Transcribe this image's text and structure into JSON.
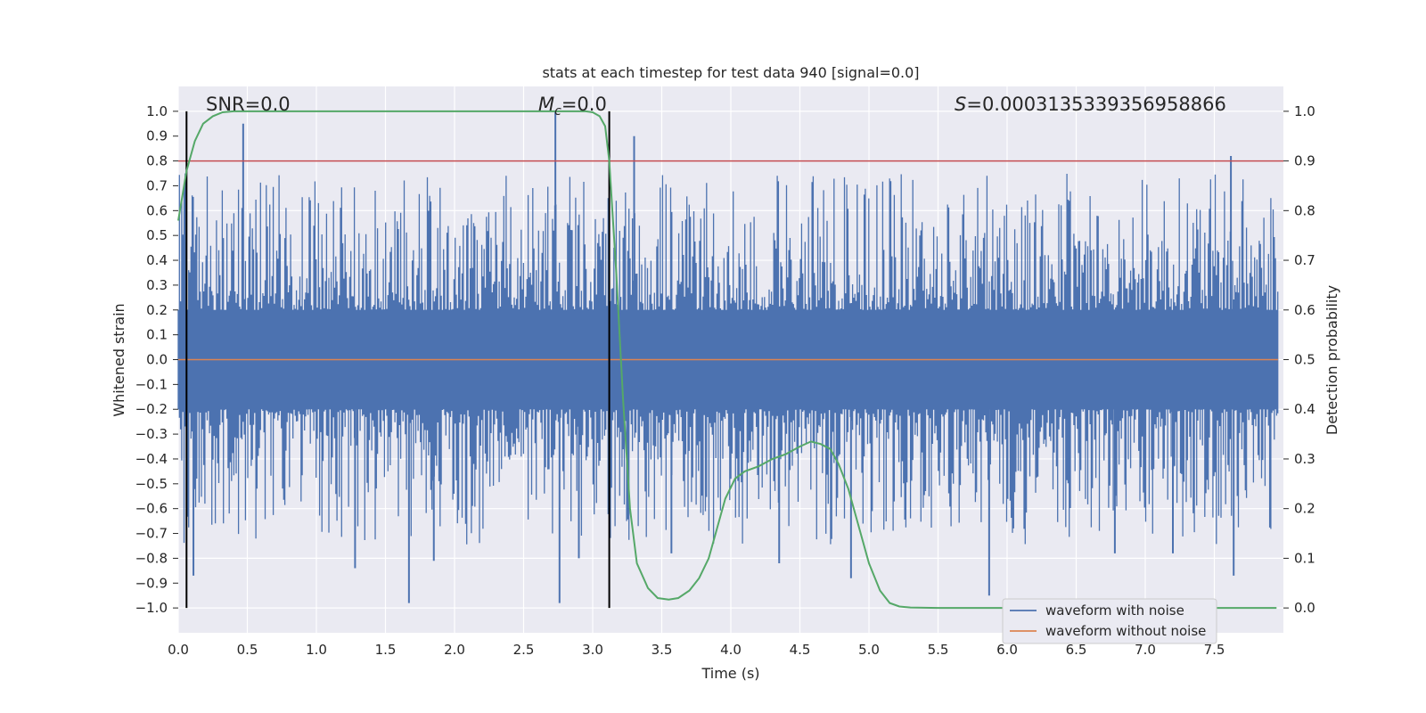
{
  "chart_data": {
    "type": "line",
    "title": "stats at each timestep for test data 940 [signal=0.0]",
    "xlabel": "Time (s)",
    "ylabel_left": "Whitened strain",
    "ylabel_right": "Detection probability",
    "xlim": [
      0.0,
      8.0
    ],
    "ylim_left": [
      -1.1,
      1.1
    ],
    "ylim_right": [
      -0.05,
      1.05
    ],
    "xticks": [
      "0.0",
      "0.5",
      "1.0",
      "1.5",
      "2.0",
      "2.5",
      "3.0",
      "3.5",
      "4.0",
      "4.5",
      "5.0",
      "5.5",
      "6.0",
      "6.5",
      "7.0",
      "7.5"
    ],
    "yticks_left": [
      "1.0",
      "0.9",
      "0.8",
      "0.7",
      "0.6",
      "0.5",
      "0.4",
      "0.3",
      "0.2",
      "0.1",
      "0.0",
      "−0.1",
      "−0.2",
      "−0.3",
      "−0.4",
      "−0.5",
      "−0.6",
      "−0.7",
      "−0.8",
      "−0.9",
      "−1.0"
    ],
    "yticks_right": [
      "1.0",
      "0.9",
      "0.8",
      "0.7",
      "0.6",
      "0.5",
      "0.4",
      "0.3",
      "0.2",
      "0.1",
      "0.0"
    ],
    "annotations": {
      "snr": "SNR=0.0",
      "mc_symbol": "M",
      "mc_sub": "c",
      "mc_value": "=0.0",
      "s_symbol": "S",
      "s_value": "=0.000313533935695886 6"
    },
    "threshold_line": {
      "y_right": 0.9,
      "color": "#c44e52"
    },
    "vertical_lines_s": [
      0.06,
      3.12
    ],
    "detection_probability": {
      "name": "detection probability",
      "color": "#55a868",
      "x": [
        0.0,
        0.06,
        0.12,
        0.18,
        0.25,
        0.32,
        0.4,
        0.6,
        1.0,
        2.0,
        2.6,
        2.95,
        3.0,
        3.05,
        3.09,
        3.12,
        3.17,
        3.22,
        3.27,
        3.32,
        3.4,
        3.47,
        3.55,
        3.62,
        3.7,
        3.77,
        3.84,
        3.9,
        3.96,
        4.03,
        4.1,
        4.2,
        4.3,
        4.4,
        4.5,
        4.58,
        4.65,
        4.72,
        4.78,
        4.85,
        4.92,
        5.0,
        5.08,
        5.15,
        5.22,
        5.3,
        5.5,
        6.0,
        7.0,
        7.95
      ],
      "y": [
        0.78,
        0.88,
        0.94,
        0.975,
        0.99,
        0.998,
        1.0,
        1.0,
        1.0,
        1.0,
        1.0,
        1.0,
        0.998,
        0.99,
        0.97,
        0.9,
        0.68,
        0.42,
        0.2,
        0.09,
        0.04,
        0.02,
        0.017,
        0.02,
        0.035,
        0.06,
        0.1,
        0.16,
        0.22,
        0.26,
        0.275,
        0.285,
        0.3,
        0.31,
        0.325,
        0.335,
        0.33,
        0.32,
        0.29,
        0.24,
        0.17,
        0.09,
        0.035,
        0.01,
        0.003,
        0.001,
        0.0,
        0.0,
        0.0,
        0.0
      ]
    },
    "series": [
      {
        "name": "waveform with noise",
        "color": "#4c72b0"
      },
      {
        "name": "waveform without noise",
        "color": "#dd8452"
      }
    ],
    "noise_spikes": [
      {
        "x": 0.47,
        "y": 0.95
      },
      {
        "x": 2.73,
        "y": 1.0
      },
      {
        "x": 3.3,
        "y": 0.9
      },
      {
        "x": 1.67,
        "y": -0.98
      },
      {
        "x": 2.76,
        "y": -0.98
      },
      {
        "x": 7.62,
        "y": 0.82
      },
      {
        "x": 5.87,
        "y": -0.95
      },
      {
        "x": 0.11,
        "y": -0.87
      },
      {
        "x": 7.64,
        "y": -0.87
      },
      {
        "x": 1.85,
        "y": -0.81
      },
      {
        "x": 1.28,
        "y": -0.84
      },
      {
        "x": 4.35,
        "y": -0.82
      },
      {
        "x": 2.9,
        "y": -0.8
      },
      {
        "x": 3.57,
        "y": -0.78
      },
      {
        "x": 4.87,
        "y": -0.88
      },
      {
        "x": 6.78,
        "y": -0.78
      },
      {
        "x": 7.2,
        "y": -0.78
      }
    ],
    "legend": {
      "position": "lower-right",
      "entries": [
        "waveform with noise",
        "waveform without noise"
      ]
    }
  }
}
